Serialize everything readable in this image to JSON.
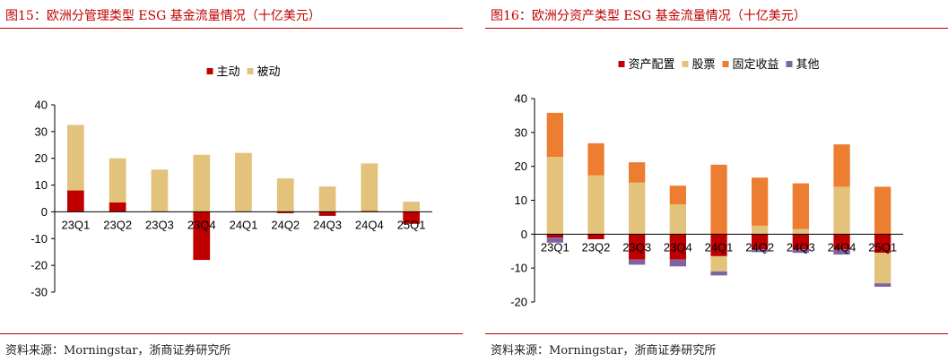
{
  "charts": [
    {
      "title": "图15：欧洲分管理类型 ESG 基金流量情况（十亿美元）",
      "source": "资料来源：Morningstar，浙商证券研究所",
      "chart_data": {
        "type": "bar",
        "stacked": true,
        "categories": [
          "23Q1",
          "23Q2",
          "23Q3",
          "23Q4",
          "24Q1",
          "24Q2",
          "24Q3",
          "24Q4",
          "25Q1"
        ],
        "series": [
          {
            "name": "主动",
            "color": "#c00000",
            "values": [
              8,
              3.5,
              0,
              -18,
              0,
              -0.5,
              -1.5,
              0.3,
              -4.5
            ]
          },
          {
            "name": "被动",
            "color": "#e3c27c",
            "values": [
              24.5,
              16.5,
              15.8,
              21.3,
              22,
              12.5,
              9.5,
              17.8,
              3.8
            ]
          }
        ],
        "yticks": [
          40,
          30,
          20,
          10,
          0,
          -10,
          -20,
          -30
        ],
        "ylim": [
          -30,
          40
        ],
        "legend_position": "top-center",
        "grid": false
      }
    },
    {
      "title": "图16：欧洲分资产类型 ESG 基金流量情况（十亿美元）",
      "source": "资料来源：Morningstar，浙商证券研究所",
      "chart_data": {
        "type": "bar",
        "stacked": true,
        "categories": [
          "23Q1",
          "23Q2",
          "23Q3",
          "23Q4",
          "24Q1",
          "24Q2",
          "24Q3",
          "24Q4",
          "25Q1"
        ],
        "series": [
          {
            "name": "资产配置",
            "color": "#c00000",
            "values": [
              -1,
              -1.5,
              -7.5,
              -7.5,
              -6.5,
              -4.5,
              -4.5,
              -4.5,
              -5.5
            ]
          },
          {
            "name": "股票",
            "color": "#e3c27c",
            "values": [
              22.8,
              17.3,
              15.2,
              8.8,
              -4.5,
              2.5,
              1.5,
              14,
              -9
            ]
          },
          {
            "name": "固定收益",
            "color": "#ed7d31",
            "values": [
              13,
              9.5,
              6,
              5.5,
              20.5,
              14.2,
              13.5,
              12.5,
              14
            ]
          },
          {
            "name": "其他",
            "color": "#8064a2",
            "values": [
              -1.5,
              0,
              -1.5,
              -2,
              -1.2,
              -0.8,
              -1,
              -1.5,
              -1
            ]
          }
        ],
        "yticks": [
          40,
          30,
          20,
          10,
          0,
          -10,
          -20
        ],
        "ylim": [
          -20,
          40
        ],
        "legend_position": "top-center",
        "grid": false
      }
    }
  ]
}
